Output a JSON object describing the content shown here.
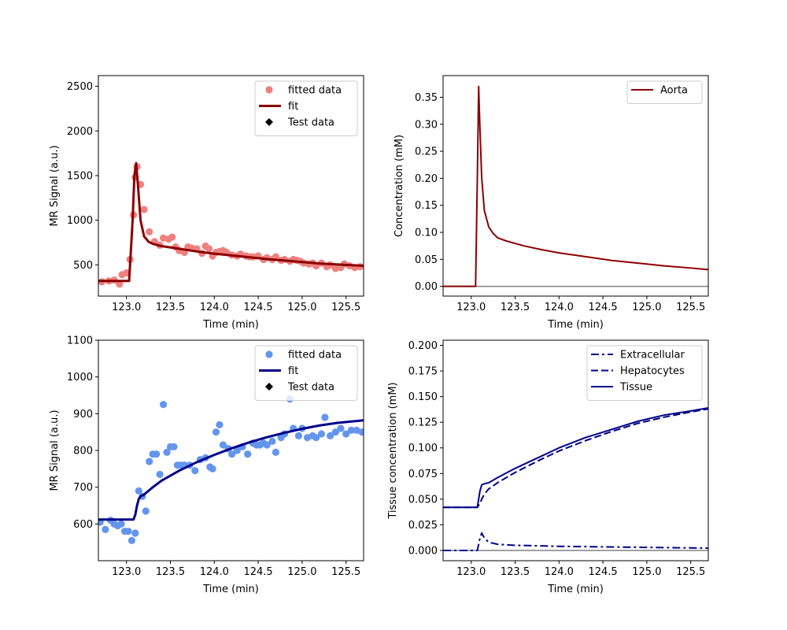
{
  "chart_data": [
    {
      "type": "scatter",
      "xlabel": "Time (min)",
      "ylabel": "MR Signal (a.u.)",
      "xlim": [
        122.68,
        125.7
      ],
      "ylim": [
        150,
        2620
      ],
      "xticks": [
        123.0,
        123.5,
        124.0,
        124.5,
        125.0,
        125.5
      ],
      "xtick_labels": [
        "123.0",
        "123.5",
        "124.0",
        "124.5",
        "125.0",
        "125.5"
      ],
      "yticks": [
        500,
        1000,
        1500,
        2000,
        2500
      ],
      "ytick_labels": [
        "500",
        "1000",
        "1500",
        "2000",
        "2500"
      ],
      "legend_position": "top-right",
      "legend": [
        {
          "label": "fitted data",
          "marker": "circle",
          "color": "#f08080"
        },
        {
          "label": "fit",
          "marker": "line",
          "color": "#8b0000"
        },
        {
          "label": "Test data",
          "marker": "diamond",
          "color": "#000000"
        }
      ],
      "series": [
        {
          "name": "fitted data",
          "kind": "scatter",
          "color": "#f08080",
          "x": [
            122.72,
            122.8,
            122.86,
            122.92,
            122.95,
            123.0,
            123.04,
            123.08,
            123.1,
            123.12,
            123.16,
            123.2,
            123.26,
            123.32,
            123.38,
            123.42,
            123.48,
            123.52,
            123.56,
            123.6,
            123.66,
            123.7,
            123.74,
            123.8,
            123.86,
            123.9,
            123.94,
            123.98,
            124.02,
            124.06,
            124.1,
            124.14,
            124.2,
            124.26,
            124.3,
            124.36,
            124.4,
            124.44,
            124.5,
            124.56,
            124.6,
            124.66,
            124.7,
            124.76,
            124.8,
            124.86,
            124.9,
            124.94,
            124.98,
            125.02,
            125.08,
            125.12,
            125.16,
            125.22,
            125.28,
            125.32,
            125.38,
            125.44,
            125.48,
            125.54,
            125.6,
            125.66
          ],
          "y": [
            310,
            320,
            330,
            285,
            390,
            410,
            560,
            1060,
            1480,
            1600,
            1400,
            1120,
            870,
            760,
            720,
            800,
            790,
            810,
            700,
            660,
            640,
            700,
            690,
            680,
            630,
            710,
            680,
            600,
            640,
            650,
            660,
            640,
            610,
            600,
            620,
            600,
            590,
            590,
            600,
            560,
            580,
            560,
            590,
            550,
            560,
            540,
            560,
            550,
            540,
            520,
            510,
            520,
            490,
            520,
            480,
            500,
            460,
            470,
            510,
            490,
            470,
            480
          ]
        },
        {
          "name": "fit",
          "kind": "line",
          "color": "#8b0000",
          "x": [
            122.68,
            123.03,
            123.07,
            123.09,
            123.11,
            123.13,
            123.16,
            123.2,
            123.25,
            123.3,
            123.4,
            123.6,
            123.8,
            124.0,
            124.3,
            124.6,
            124.9,
            125.2,
            125.5,
            125.7
          ],
          "y": [
            320,
            320,
            1000,
            1500,
            1640,
            1400,
            1000,
            820,
            760,
            735,
            710,
            680,
            650,
            625,
            595,
            565,
            540,
            515,
            500,
            490
          ]
        }
      ]
    },
    {
      "type": "line",
      "xlabel": "Time (min)",
      "ylabel": "Concentration (mM)",
      "xlim": [
        122.68,
        125.7
      ],
      "ylim": [
        -0.018,
        0.39
      ],
      "xticks": [
        123.0,
        123.5,
        124.0,
        124.5,
        125.0,
        125.5
      ],
      "xtick_labels": [
        "123.0",
        "123.5",
        "124.0",
        "124.5",
        "125.0",
        "125.5"
      ],
      "yticks": [
        0.0,
        0.05,
        0.1,
        0.15,
        0.2,
        0.25,
        0.3,
        0.35
      ],
      "ytick_labels": [
        "0.00",
        "0.05",
        "0.10",
        "0.15",
        "0.20",
        "0.25",
        "0.30",
        "0.35"
      ],
      "legend_position": "top-right",
      "legend": [
        {
          "label": "Aorta",
          "marker": "line",
          "color": "#8b0000"
        }
      ],
      "zero_line_color": "#808080",
      "series": [
        {
          "name": "Aorta",
          "kind": "line",
          "color": "#8b0000",
          "x": [
            122.68,
            123.05,
            123.07,
            123.085,
            123.1,
            123.12,
            123.15,
            123.2,
            123.25,
            123.3,
            123.4,
            123.6,
            123.8,
            124.0,
            124.3,
            124.6,
            124.9,
            125.2,
            125.5,
            125.7
          ],
          "y": [
            0.0,
            0.0,
            0.2,
            0.37,
            0.29,
            0.2,
            0.14,
            0.11,
            0.098,
            0.09,
            0.084,
            0.075,
            0.068,
            0.062,
            0.055,
            0.048,
            0.043,
            0.038,
            0.034,
            0.031
          ]
        }
      ]
    },
    {
      "type": "scatter",
      "xlabel": "Time (min)",
      "ylabel": "MR Signal (a.u.)",
      "xlim": [
        122.68,
        125.7
      ],
      "ylim": [
        500,
        1100
      ],
      "xticks": [
        123.0,
        123.5,
        124.0,
        124.5,
        125.0,
        125.5
      ],
      "xtick_labels": [
        "123.0",
        "123.5",
        "124.0",
        "124.5",
        "125.0",
        "125.5"
      ],
      "yticks": [
        600,
        700,
        800,
        900,
        1000,
        1100
      ],
      "ytick_labels": [
        "600",
        "700",
        "800",
        "900",
        "1000",
        "1100"
      ],
      "legend_position": "top-right",
      "legend": [
        {
          "label": "fitted data",
          "marker": "circle",
          "color": "#6495ed"
        },
        {
          "label": "fit",
          "marker": "line",
          "color": "#00008b"
        },
        {
          "label": "Test data",
          "marker": "diamond",
          "color": "#000000"
        }
      ],
      "series": [
        {
          "name": "fitted data",
          "kind": "scatter",
          "color": "#6495ed",
          "x": [
            122.7,
            122.76,
            122.82,
            122.86,
            122.9,
            122.94,
            122.98,
            123.02,
            123.06,
            123.1,
            123.14,
            123.18,
            123.22,
            123.26,
            123.3,
            123.34,
            123.38,
            123.42,
            123.46,
            123.5,
            123.54,
            123.58,
            123.62,
            123.66,
            123.72,
            123.78,
            123.84,
            123.9,
            123.95,
            123.98,
            124.02,
            124.06,
            124.1,
            124.16,
            124.2,
            124.26,
            124.32,
            124.38,
            124.44,
            124.48,
            124.52,
            124.56,
            124.6,
            124.66,
            124.7,
            124.76,
            124.8,
            124.86,
            124.9,
            124.96,
            125.0,
            125.06,
            125.12,
            125.16,
            125.22,
            125.26,
            125.32,
            125.38,
            125.44,
            125.5,
            125.56,
            125.62,
            125.68
          ],
          "y": [
            605,
            585,
            610,
            600,
            595,
            600,
            580,
            580,
            555,
            575,
            690,
            675,
            635,
            770,
            790,
            790,
            735,
            925,
            795,
            810,
            810,
            760,
            760,
            760,
            760,
            745,
            775,
            780,
            755,
            750,
            850,
            870,
            815,
            805,
            790,
            800,
            810,
            790,
            820,
            815,
            815,
            820,
            815,
            825,
            795,
            835,
            845,
            940,
            860,
            840,
            860,
            835,
            840,
            835,
            845,
            890,
            840,
            850,
            860,
            845,
            855,
            855,
            850
          ]
        },
        {
          "name": "fit",
          "kind": "line",
          "color": "#00008b",
          "x": [
            122.68,
            123.08,
            123.1,
            123.12,
            123.14,
            123.16,
            123.2,
            123.3,
            123.4,
            123.6,
            123.8,
            124.0,
            124.2,
            124.4,
            124.6,
            124.8,
            125.0,
            125.2,
            125.4,
            125.7
          ],
          "y": [
            612,
            612,
            625,
            650,
            668,
            675,
            680,
            700,
            718,
            745,
            768,
            788,
            806,
            822,
            836,
            848,
            859,
            868,
            875,
            882
          ]
        }
      ]
    },
    {
      "type": "line",
      "xlabel": "Time (min)",
      "ylabel": "Tissue concentration (mM)",
      "xlim": [
        122.68,
        125.7
      ],
      "ylim": [
        -0.01,
        0.205
      ],
      "xticks": [
        123.0,
        123.5,
        124.0,
        124.5,
        125.0,
        125.5
      ],
      "xtick_labels": [
        "123.0",
        "123.5",
        "124.0",
        "124.5",
        "125.0",
        "125.5"
      ],
      "yticks": [
        0.0,
        0.025,
        0.05,
        0.075,
        0.1,
        0.125,
        0.15,
        0.175,
        0.2
      ],
      "ytick_labels": [
        "0.000",
        "0.025",
        "0.050",
        "0.075",
        "0.100",
        "0.125",
        "0.150",
        "0.175",
        "0.200"
      ],
      "legend_position": "top-right",
      "legend": [
        {
          "label": "Extracellular",
          "marker": "dashdot",
          "color": "#00008b"
        },
        {
          "label": "Hepatocytes",
          "marker": "dashed",
          "color": "#00008b"
        },
        {
          "label": "Tissue",
          "marker": "line",
          "color": "#00008b"
        }
      ],
      "zero_line_color": "#808080",
      "series": [
        {
          "name": "Extracellular",
          "kind": "line",
          "style": "dashdot",
          "color": "#00008b",
          "x": [
            122.68,
            123.07,
            123.1,
            123.12,
            123.15,
            123.2,
            123.3,
            123.5,
            123.8,
            124.0,
            124.5,
            125.0,
            125.5,
            125.7
          ],
          "y": [
            0.0,
            0.0,
            0.012,
            0.017,
            0.012,
            0.008,
            0.006,
            0.005,
            0.0045,
            0.004,
            0.0035,
            0.003,
            0.0025,
            0.0022
          ]
        },
        {
          "name": "Hepatocytes",
          "kind": "line",
          "style": "dashed",
          "color": "#00008b",
          "x": [
            122.68,
            123.07,
            123.1,
            123.12,
            123.15,
            123.2,
            123.3,
            123.5,
            123.8,
            124.0,
            124.3,
            124.6,
            124.9,
            125.2,
            125.5,
            125.7
          ],
          "y": [
            0.042,
            0.042,
            0.046,
            0.05,
            0.055,
            0.06,
            0.066,
            0.076,
            0.089,
            0.097,
            0.107,
            0.116,
            0.124,
            0.13,
            0.135,
            0.138
          ]
        },
        {
          "name": "Tissue",
          "kind": "line",
          "style": "solid",
          "color": "#00008b",
          "x": [
            122.68,
            123.07,
            123.1,
            123.12,
            123.15,
            123.2,
            123.3,
            123.5,
            123.8,
            124.0,
            124.3,
            124.6,
            124.9,
            125.2,
            125.5,
            125.7
          ],
          "y": [
            0.042,
            0.042,
            0.058,
            0.064,
            0.065,
            0.066,
            0.071,
            0.08,
            0.092,
            0.1,
            0.11,
            0.118,
            0.126,
            0.132,
            0.136,
            0.139
          ]
        }
      ]
    }
  ]
}
